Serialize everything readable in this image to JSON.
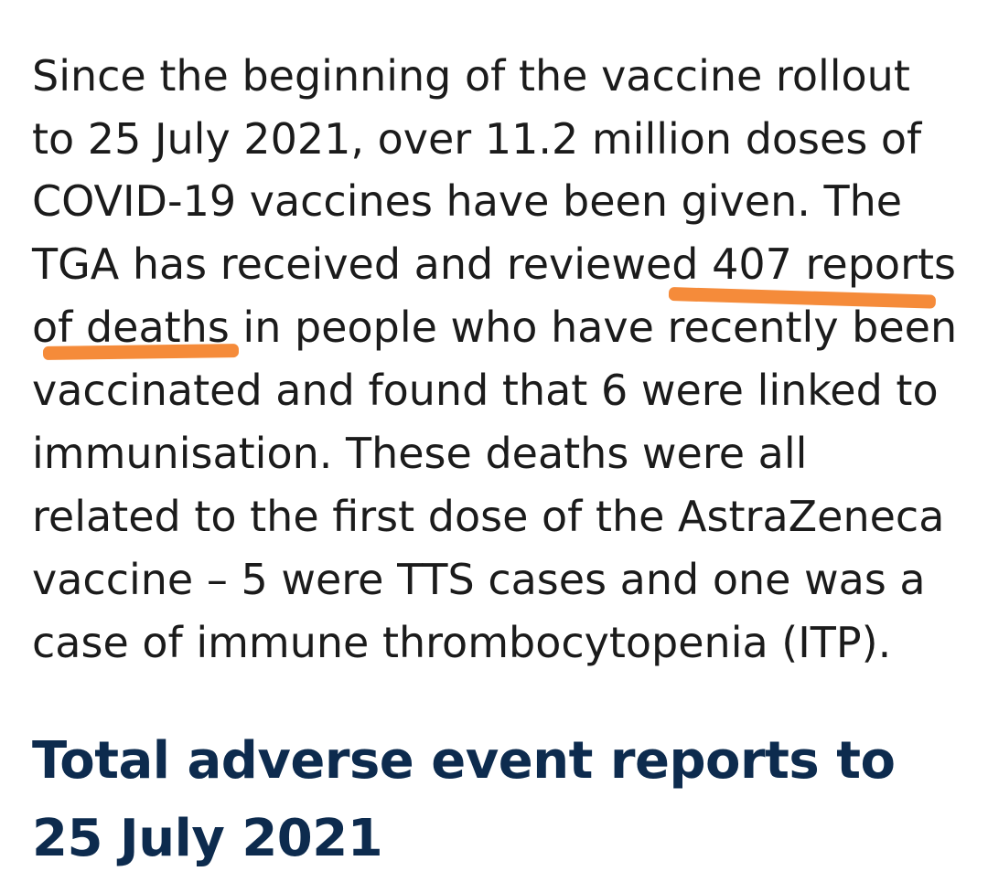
{
  "paragraph": {
    "lines": [
      "Since the beginning of the vaccine rollout",
      "to 25 July 2021, over 11.2 million doses of",
      "COVID-19 vaccines have been given. The",
      "TGA has received and reviewed 407 reports",
      "of deaths in people who have recently been",
      "vaccinated and found that 6 were linked to",
      "immunisation. These deaths were all",
      "related to the first dose of the AstraZeneca",
      "vaccine – 5 were TTS cases and one was a",
      "case of immune thrombocytopenia (ITP)."
    ],
    "highlighted_phrase": "407 reports of deaths",
    "highlight_color": "#f58b3a"
  },
  "heading": {
    "line1": "Total adverse event reports to",
    "line2": "25 July 2021",
    "color": "#0d2b4e"
  }
}
